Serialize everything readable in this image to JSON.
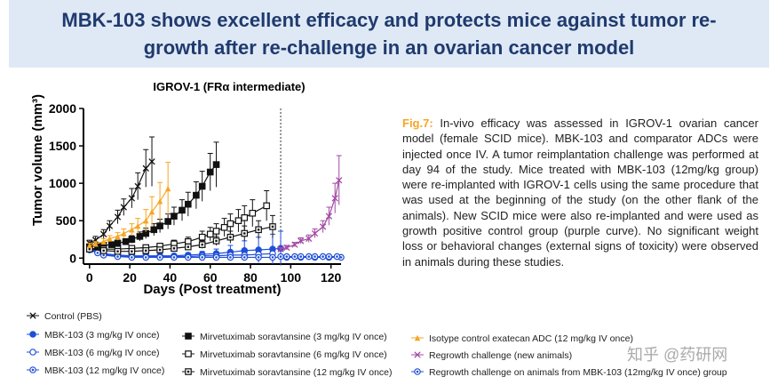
{
  "header": {
    "title_lines": [
      "MBK-103 shows excellent efficacy and protects mice against tumor re-",
      "growth after re-challenge in an ovarian cancer model"
    ]
  },
  "caption": {
    "label": "Fig.7:",
    "text": "In-vivo efficacy was assessed in IGROV-1 ovarian cancer model (female SCID mice). MBK-103 and comparator ADCs were injected once IV. A tumor reimplantation challenge was performed at day 94 of the study. Mice treated with MBK-103 (12mg/kg group) were re-implanted with IGROV-1 cells using the same procedure that was used at the beginning of the study (on the other flank of the animals). New SCID mice were also re-implanted and were used as growth positive control group (purple curve). No significant weight loss or behavioral changes (external signs of toxicity) were observed in animals during these studies."
  },
  "watermark": "知乎 @药研网",
  "chart_data": {
    "type": "line",
    "title": "IGROV-1 (FRα intermediate)",
    "x_label": "Days (Post treatment)",
    "y_label": "Tumor volume (mm³)",
    "xlim": [
      -3,
      125
    ],
    "ylim": [
      -80,
      2000
    ],
    "xticks": [
      0,
      20,
      40,
      60,
      80,
      100,
      120
    ],
    "yticks": [
      0,
      500,
      1000,
      1500,
      2000
    ],
    "vline": 95,
    "series": [
      {
        "name": "Control (PBS)",
        "color": "#111111",
        "marker": "x",
        "x": [
          0,
          3,
          7,
          10,
          14,
          17,
          21,
          24,
          28,
          31
        ],
        "values": [
          200,
          240,
          320,
          430,
          550,
          680,
          800,
          960,
          1200,
          1290
        ],
        "errors": [
          40,
          50,
          60,
          70,
          90,
          110,
          130,
          180,
          250,
          330
        ]
      },
      {
        "name": "MBK-103 (3 mg/kg IV once)",
        "color": "#1f4fd8",
        "marker": "circle-filled",
        "x": [
          0,
          4,
          7,
          14,
          21,
          28,
          35,
          42,
          49,
          56,
          63,
          70,
          77,
          84,
          91,
          95
        ],
        "values": [
          130,
          90,
          60,
          40,
          30,
          30,
          30,
          30,
          40,
          50,
          60,
          80,
          100,
          110,
          120,
          130
        ],
        "errors": [
          30,
          30,
          20,
          20,
          20,
          20,
          20,
          20,
          30,
          40,
          60,
          90,
          130,
          170,
          200,
          230
        ]
      },
      {
        "name": "MBK-103 (6 mg/kg IV once)",
        "color": "#1f4fd8",
        "marker": "circle-open",
        "x": [
          0,
          4,
          7,
          14,
          21,
          28,
          35,
          42,
          49,
          56,
          63,
          70,
          77,
          84,
          91
        ],
        "values": [
          120,
          80,
          50,
          30,
          20,
          20,
          20,
          20,
          20,
          30,
          30,
          40,
          40,
          50,
          60
        ],
        "errors": [
          30,
          20,
          20,
          10,
          10,
          10,
          10,
          10,
          10,
          20,
          20,
          30,
          30,
          40,
          50
        ]
      },
      {
        "name": "MBK-103 (12 mg/kg IV once)",
        "color": "#1f4fd8",
        "marker": "circle-dot",
        "x": [
          0,
          4,
          7,
          14,
          21,
          28,
          35,
          42,
          49,
          56,
          63,
          70,
          77,
          84,
          91,
          98,
          105,
          112,
          119,
          125
        ],
        "values": [
          110,
          70,
          40,
          20,
          10,
          10,
          10,
          10,
          10,
          10,
          10,
          10,
          10,
          10,
          10,
          10,
          10,
          10,
          10,
          10
        ],
        "errors": [
          30,
          20,
          10,
          10,
          10,
          10,
          10,
          10,
          10,
          10,
          10,
          10,
          10,
          10,
          10,
          10,
          10,
          10,
          10,
          10
        ]
      },
      {
        "name": "Mirvetuximab soravtansine (3 mg/kg IV once)",
        "color": "#111111",
        "marker": "square-filled",
        "x": [
          0,
          4,
          7,
          11,
          14,
          18,
          21,
          25,
          28,
          32,
          35,
          39,
          42,
          46,
          49,
          53,
          56,
          60,
          63
        ],
        "values": [
          150,
          160,
          170,
          180,
          200,
          220,
          250,
          290,
          330,
          380,
          430,
          490,
          560,
          640,
          720,
          840,
          960,
          1150,
          1250
        ],
        "errors": [
          20,
          20,
          30,
          30,
          40,
          40,
          50,
          60,
          70,
          80,
          90,
          100,
          120,
          140,
          160,
          180,
          200,
          250,
          300
        ]
      },
      {
        "name": "Mirvetuximab soravtansine (6 mg/kg IV once)",
        "color": "#111111",
        "marker": "square-open",
        "x": [
          0,
          7,
          14,
          21,
          28,
          35,
          42,
          49,
          56,
          60,
          63,
          67,
          70,
          74,
          77,
          81,
          88
        ],
        "values": [
          130,
          120,
          120,
          130,
          140,
          160,
          190,
          220,
          280,
          320,
          360,
          410,
          460,
          500,
          540,
          600,
          700
        ],
        "errors": [
          20,
          20,
          20,
          30,
          30,
          40,
          50,
          60,
          80,
          90,
          100,
          120,
          130,
          150,
          160,
          180,
          200
        ]
      },
      {
        "name": "Mirvetuximab soravtansine (12 mg/kg IV once)",
        "color": "#111111",
        "marker": "square-dot",
        "x": [
          0,
          7,
          14,
          21,
          28,
          35,
          42,
          49,
          56,
          63,
          70,
          77,
          84,
          91
        ],
        "values": [
          120,
          100,
          90,
          90,
          100,
          110,
          130,
          150,
          180,
          230,
          280,
          330,
          380,
          420
        ],
        "errors": [
          20,
          20,
          20,
          20,
          20,
          30,
          30,
          40,
          50,
          60,
          80,
          100,
          120,
          150
        ]
      },
      {
        "name": "Isotype control exatecan ADC (12 mg/kg IV once)",
        "color": "#f5a623",
        "marker": "triangle",
        "x": [
          0,
          3,
          7,
          10,
          14,
          17,
          21,
          24,
          28,
          31,
          35,
          39
        ],
        "values": [
          170,
          190,
          220,
          260,
          290,
          330,
          380,
          430,
          500,
          620,
          760,
          930
        ],
        "errors": [
          30,
          30,
          40,
          40,
          50,
          60,
          80,
          100,
          150,
          200,
          250,
          350
        ]
      },
      {
        "name": "Regrowth challenge (new animals)",
        "color": "#a349a4",
        "marker": "x",
        "x": [
          95,
          98,
          102,
          105,
          109,
          112,
          116,
          119,
          122,
          124
        ],
        "values": [
          120,
          140,
          180,
          230,
          260,
          330,
          420,
          560,
          800,
          1040
        ],
        "errors": [
          20,
          30,
          30,
          40,
          50,
          60,
          80,
          120,
          200,
          330
        ]
      },
      {
        "name": "Regrowth challenge on animals from MBK-103 (12mg/kg IV once) group",
        "color": "#1f4fd8",
        "marker": "circle-dot",
        "x": [
          95,
          98,
          102,
          105,
          109,
          112,
          116,
          119,
          123
        ],
        "values": [
          20,
          20,
          20,
          20,
          20,
          20,
          20,
          20,
          20
        ],
        "errors": [
          10,
          10,
          10,
          10,
          10,
          10,
          10,
          10,
          10
        ]
      }
    ]
  }
}
